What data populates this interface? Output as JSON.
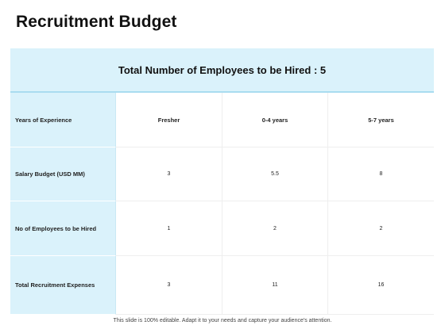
{
  "title": "Recruitment Budget",
  "banner": "Total Number of Employees to be Hired : 5",
  "table": {
    "header": {
      "label": "Years of Experience",
      "columns": [
        "Fresher",
        "0-4 years",
        "5-7 years"
      ]
    },
    "rows": [
      {
        "label": "Salary Budget (USD MM)",
        "values": [
          "3",
          "5.5",
          "8"
        ]
      },
      {
        "label": "No of Employees to be Hired",
        "values": [
          "1",
          "2",
          "2"
        ]
      },
      {
        "label": "Total Recruitment Expenses",
        "values": [
          "3",
          "11",
          "16"
        ]
      }
    ]
  },
  "footer": "This slide is 100% editable. Adapt it to your needs and capture your audience's attention.",
  "colors": {
    "accent_bg": "#daf2fb",
    "accent_line": "#a9dcf0"
  }
}
